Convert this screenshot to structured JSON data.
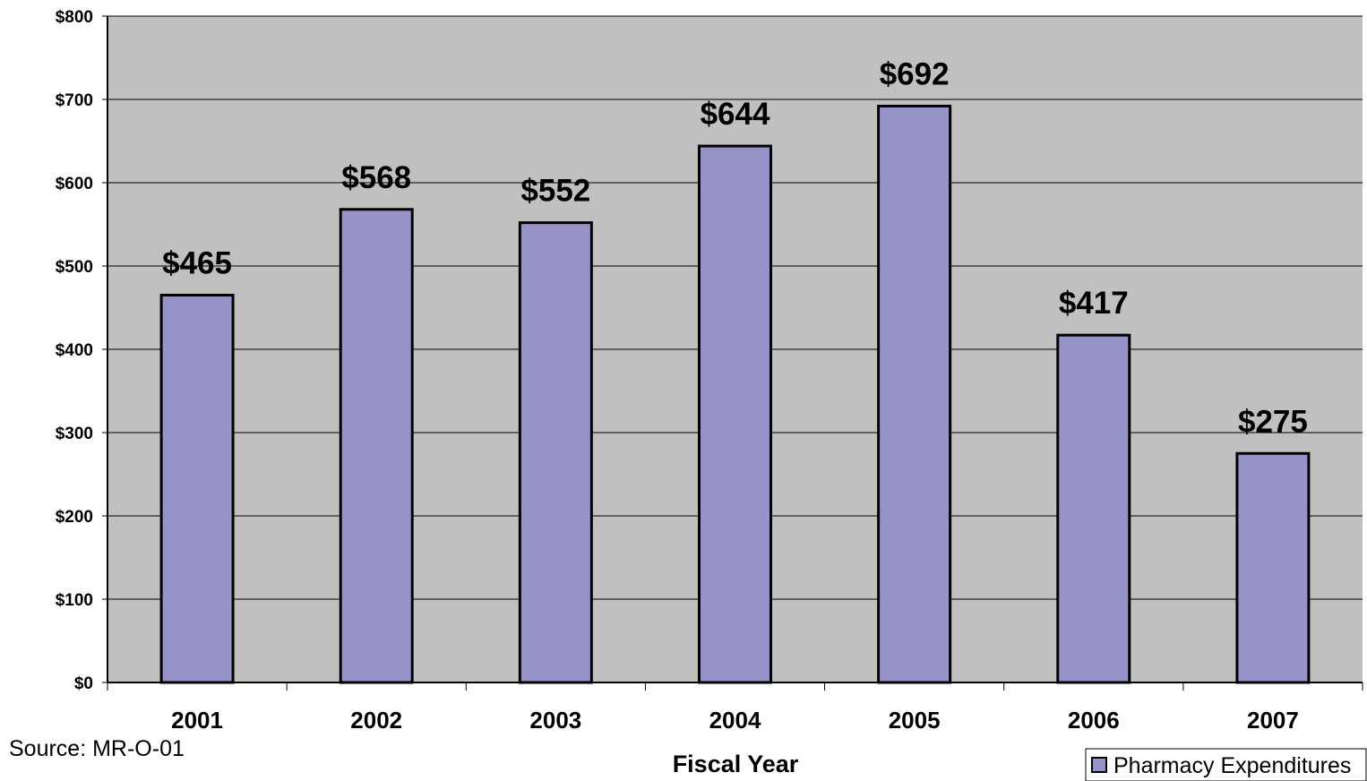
{
  "chart_data": {
    "type": "bar",
    "categories": [
      "2001",
      "2002",
      "2003",
      "2004",
      "2005",
      "2006",
      "2007"
    ],
    "series": [
      {
        "name": "Pharmacy Expenditures",
        "values": [
          465,
          568,
          552,
          644,
          692,
          417,
          275
        ],
        "labels": [
          "$465",
          "$568",
          "$552",
          "$644",
          "$692",
          "$417",
          "$275"
        ],
        "color": "#9693c9"
      }
    ],
    "title": "",
    "xlabel": "Fiscal Year",
    "ylabel": "",
    "ylim": [
      0,
      800
    ],
    "yticks": [
      0,
      100,
      200,
      300,
      400,
      500,
      600,
      700,
      800
    ],
    "ytick_labels": [
      "$0",
      "$100",
      "$200",
      "$300",
      "$400",
      "$500",
      "$600",
      "$700",
      "$800"
    ],
    "grid": true,
    "legend": "bottom-right",
    "plot_background": "#c0c0c0"
  },
  "source_note": "Source: MR-O-01",
  "legend_label": "Pharmacy Expenditures"
}
